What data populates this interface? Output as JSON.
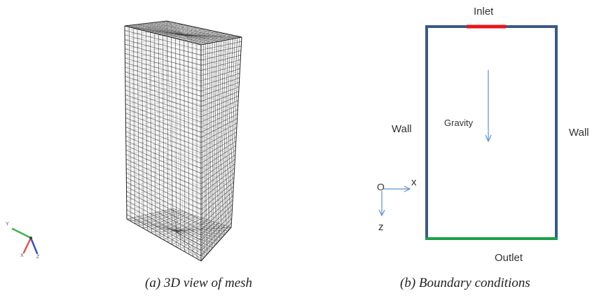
{
  "figure_a": {
    "caption": "(a)    3D view of mesh",
    "triad": {
      "y": "Y",
      "x": "X",
      "z": "Z"
    }
  },
  "figure_b": {
    "caption": "(b) Boundary conditions",
    "labels": {
      "inlet": "Inlet",
      "outlet": "Outlet",
      "wall_left": "Wall",
      "wall_right": "Wall",
      "gravity": "Gravity",
      "origin": "O",
      "x_axis": "x",
      "z_axis": "z"
    },
    "colors": {
      "wall": "#3b5a82",
      "inlet": "#e8161a",
      "outlet": "#19a046",
      "arrows": "#5b8fd0",
      "mesh": "#1a1a1a"
    }
  }
}
